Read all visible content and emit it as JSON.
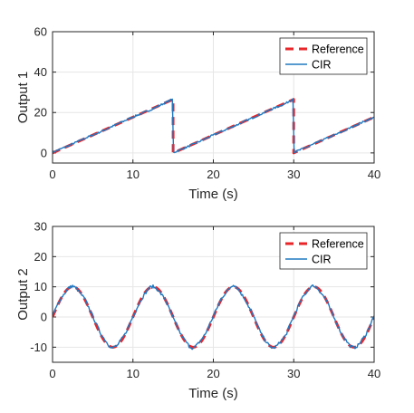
{
  "chart_data": [
    {
      "type": "line",
      "title": "",
      "xlabel": "Time (s)",
      "ylabel": "Output 1",
      "xlim": [
        0,
        40
      ],
      "ylim": [
        -5,
        60
      ],
      "xticks": [
        "0",
        "10",
        "20",
        "30",
        "40"
      ],
      "yticks": [
        "0",
        "20",
        "40",
        "60"
      ],
      "grid": true,
      "legend_position": "top-right",
      "series": [
        {
          "name": "Reference",
          "color": "#e8262a",
          "style": "dashed",
          "x": [
            0,
            14.99,
            15,
            29.99,
            30,
            40
          ],
          "y": [
            0,
            26.5,
            0,
            26.5,
            0,
            17.7
          ]
        },
        {
          "name": "CIR",
          "color": "#1f78c1",
          "style": "solid",
          "x": [
            0,
            2,
            4,
            6,
            8,
            10,
            12,
            14,
            14.9,
            15.05,
            17,
            19,
            21,
            23,
            25,
            27,
            29,
            29.9,
            30.05,
            32,
            34,
            36,
            38,
            40
          ],
          "y": [
            0.3,
            3.6,
            7.2,
            10.5,
            14.2,
            17.8,
            21.0,
            24.8,
            26.6,
            0.2,
            3.4,
            7.0,
            10.6,
            14.0,
            17.6,
            21.2,
            24.5,
            26.8,
            0.3,
            3.5,
            7.1,
            10.4,
            14.3,
            17.6
          ]
        }
      ]
    },
    {
      "type": "line",
      "title": "",
      "xlabel": "Time (s)",
      "ylabel": "Output 2",
      "xlim": [
        0,
        40
      ],
      "ylim": [
        -15,
        30
      ],
      "xticks": [
        "0",
        "10",
        "20",
        "30",
        "40"
      ],
      "yticks": [
        "-10",
        "0",
        "10",
        "20",
        "30"
      ],
      "grid": true,
      "legend_position": "top-right",
      "series": [
        {
          "name": "Reference",
          "color": "#e8262a",
          "style": "dashed",
          "function": "10*sin(2*pi*t/10)",
          "x_range": [
            0,
            40
          ]
        },
        {
          "name": "CIR",
          "color": "#1f78c1",
          "style": "solid",
          "x": [
            0,
            1,
            2,
            2.5,
            3,
            4,
            5,
            6,
            7,
            7.5,
            8,
            9,
            10,
            11,
            12,
            12.5,
            13,
            14,
            15,
            16,
            17,
            17.5,
            18,
            19,
            20,
            21,
            22,
            22.5,
            23,
            24,
            25,
            26,
            27,
            27.5,
            28,
            29,
            30,
            31,
            32,
            32.5,
            33,
            34,
            35,
            36,
            37,
            37.5,
            38,
            39,
            40
          ],
          "y": [
            0.5,
            6.1,
            9.6,
            10.3,
            9.4,
            6.0,
            0.3,
            -5.6,
            -9.4,
            -10.2,
            -9.6,
            -5.8,
            0.2,
            5.7,
            9.7,
            10.1,
            9.3,
            5.9,
            -0.4,
            -6.0,
            -9.7,
            -10.4,
            -9.2,
            -5.7,
            0.3,
            6.2,
            9.5,
            10.8,
            9.6,
            5.6,
            0.2,
            -5.9,
            -9.8,
            -10.3,
            -9.3,
            -6.1,
            0.4,
            6.0,
            9.8,
            10.4,
            9.4,
            5.8,
            -0.2,
            -5.8,
            -9.6,
            -10.2,
            -9.4,
            -5.7,
            0.4
          ]
        }
      ]
    }
  ]
}
